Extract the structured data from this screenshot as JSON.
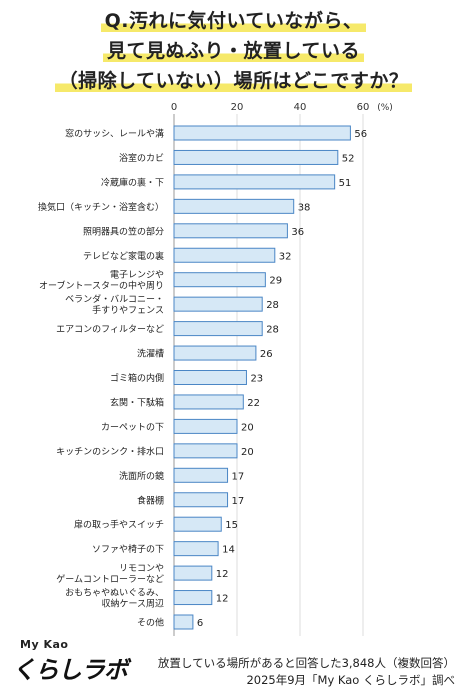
{
  "title": {
    "lines": [
      "Q.汚れに気付いていながら、",
      "見て見ぬふり・放置している",
      "（掃除していない）場所はどこですか？"
    ]
  },
  "chart_data": {
    "type": "bar",
    "orientation": "horizontal",
    "unit": "(%)",
    "xlim": [
      0,
      60
    ],
    "ticks": [
      0,
      20,
      40,
      60
    ],
    "grid": true,
    "bar_color": "#d6e8f6",
    "bar_border": "#4a86c5",
    "categories": [
      [
        "窓のサッシ、レールや溝"
      ],
      [
        "浴室のカビ"
      ],
      [
        "冷蔵庫の裏・下"
      ],
      [
        "換気口（キッチン・浴室含む）"
      ],
      [
        "照明器具の笠の部分"
      ],
      [
        "テレビなど家電の裏"
      ],
      [
        "電子レンジや",
        "オーブントースターの中や周り"
      ],
      [
        "ベランダ・バルコニー・",
        "手すりやフェンス"
      ],
      [
        "エアコンのフィルターなど"
      ],
      [
        "洗濯槽"
      ],
      [
        "ゴミ箱の内側"
      ],
      [
        "玄関・下駄箱"
      ],
      [
        "カーペットの下"
      ],
      [
        "キッチンのシンク・排水口"
      ],
      [
        "洗面所の鏡"
      ],
      [
        "食器棚"
      ],
      [
        "扉の取っ手やスイッチ"
      ],
      [
        "ソファや椅子の下"
      ],
      [
        "リモコンや",
        "ゲームコントローラーなど"
      ],
      [
        "おもちゃやぬいぐるみ、",
        "収納ケース周辺"
      ],
      [
        "その他"
      ]
    ],
    "values": [
      56,
      52,
      51,
      38,
      36,
      32,
      29,
      28,
      28,
      26,
      23,
      22,
      20,
      20,
      17,
      17,
      15,
      14,
      12,
      12,
      6
    ]
  },
  "footer": {
    "note_line1": "放置している場所があると回答した3,848人（複数回答）",
    "note_line2": "2025年9月「My Kao くらしラボ」調べ"
  },
  "logo": {
    "top": "My Kao",
    "brand": "くらしラボ"
  }
}
